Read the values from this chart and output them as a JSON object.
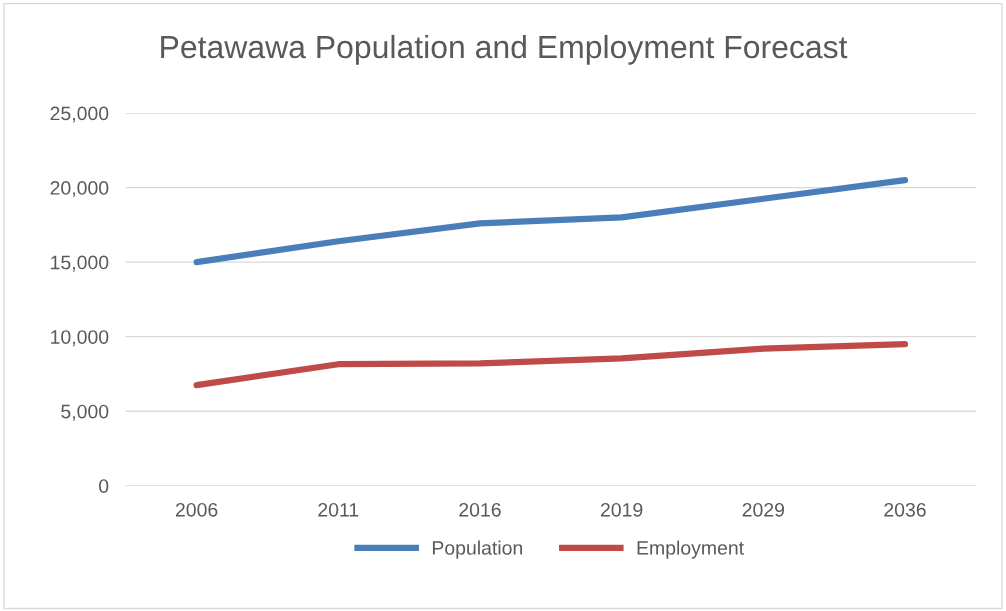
{
  "chart_data": {
    "type": "line",
    "title": "Petawawa Population and Employment Forecast",
    "categories": [
      "2006",
      "2011",
      "2016",
      "2019",
      "2029",
      "2036"
    ],
    "series": [
      {
        "name": "Population",
        "color": "#4a7ebb",
        "values": [
          15000,
          16400,
          17600,
          18000,
          19250,
          20500
        ]
      },
      {
        "name": "Employment",
        "color": "#be4b48",
        "values": [
          6750,
          8150,
          8200,
          8550,
          9200,
          9500
        ]
      }
    ],
    "ylim": [
      0,
      25000
    ],
    "yticks": [
      {
        "value": 0,
        "label": "0"
      },
      {
        "value": 5000,
        "label": "5,000"
      },
      {
        "value": 10000,
        "label": "10,000"
      },
      {
        "value": 15000,
        "label": "15,000"
      },
      {
        "value": 20000,
        "label": "20,000"
      },
      {
        "value": 25000,
        "label": "25,000"
      }
    ],
    "grid": "y",
    "legend": "bottom",
    "marker": "none",
    "line_style": "solid"
  }
}
